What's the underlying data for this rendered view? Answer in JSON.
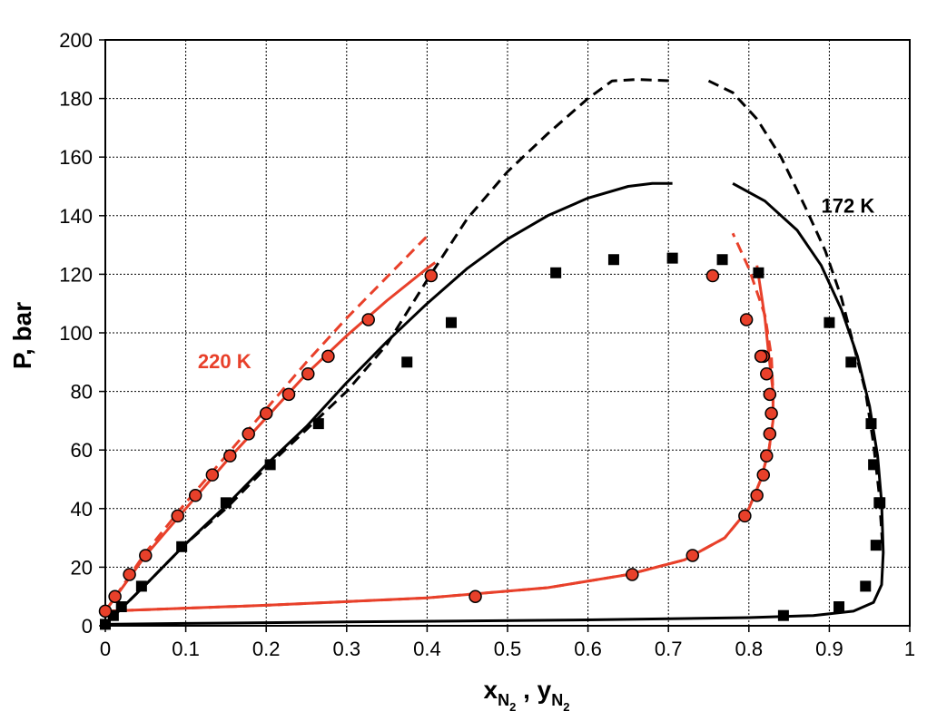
{
  "chart_data": {
    "type": "scatter",
    "title": "",
    "ylabel": "P, bar",
    "xlabel": {
      "x_main": "x",
      "x_sub": "N",
      "x_subsub": "2",
      "sep": " , ",
      "y_main": "y",
      "y_sub": "N",
      "y_subsub": "2"
    },
    "xlim": [
      0,
      1
    ],
    "ylim": [
      0,
      200
    ],
    "xticks": [
      0,
      0.1,
      0.2,
      0.3,
      0.4,
      0.5,
      0.6,
      0.7,
      0.8,
      0.9,
      1
    ],
    "xtick_labels": [
      "0",
      "0.1",
      "0.2",
      "0.3",
      "0.4",
      "0.5",
      "0.6",
      "0.7",
      "0.8",
      "0.9",
      "1"
    ],
    "yticks": [
      0,
      20,
      40,
      60,
      80,
      100,
      120,
      140,
      160,
      180,
      200
    ],
    "ytick_labels": [
      "0",
      "20",
      "40",
      "60",
      "80",
      "100",
      "120",
      "140",
      "160",
      "180",
      "200"
    ],
    "grid": true,
    "colors": {
      "k172": "#000000",
      "k220": "#e8402a"
    },
    "annotations": [
      {
        "text": "172 K",
        "x": 0.89,
        "y": 141,
        "color": "#000000"
      },
      {
        "text": "220 K",
        "x": 0.115,
        "y": 88,
        "color": "#e8402a"
      }
    ],
    "series": [
      {
        "temperature": "172 K",
        "kind": "points",
        "marker": "square",
        "color": "#000000",
        "x": [
          0.0,
          0.01,
          0.02,
          0.045,
          0.095,
          0.15,
          0.205,
          0.265,
          0.375,
          0.43,
          0.56,
          0.632,
          0.705,
          0.767,
          0.812,
          0.843,
          0.912,
          0.945,
          0.952,
          0.955,
          0.958,
          0.962,
          0.963,
          0.927,
          0.9
        ],
        "y": [
          0.5,
          3.5,
          6.5,
          13.5,
          27,
          42,
          55,
          69,
          90,
          103.5,
          120.5,
          125,
          125.5,
          125,
          120.5,
          3.5,
          6.5,
          13.5,
          69,
          55,
          27.5,
          42,
          42,
          90,
          103.5
        ]
      },
      {
        "temperature": "172 K",
        "kind": "line",
        "style": "solid",
        "color": "#000000",
        "x": [
          0.0,
          0.05,
          0.1,
          0.15,
          0.2,
          0.25,
          0.3,
          0.35,
          0.4,
          0.45,
          0.5,
          0.55,
          0.6,
          0.65,
          0.68,
          0.705
        ],
        "y": [
          0.5,
          14,
          28,
          41,
          55,
          68,
          83,
          97,
          110,
          122,
          132,
          140,
          146,
          150,
          151,
          151
        ]
      },
      {
        "temperature": "172 K",
        "kind": "line",
        "style": "solid",
        "color": "#000000",
        "x": [
          0.78,
          0.82,
          0.86,
          0.89,
          0.915,
          0.935,
          0.95,
          0.96,
          0.965,
          0.967,
          0.965,
          0.955,
          0.93,
          0.88,
          0.8,
          0.6,
          0.3,
          0.1,
          0.0
        ],
        "y": [
          151,
          145,
          135,
          123,
          108,
          92,
          75,
          58,
          42,
          25,
          14,
          8,
          5,
          3.5,
          2.8,
          2,
          1.3,
          0.8,
          0.5
        ]
      },
      {
        "temperature": "172 K",
        "kind": "line",
        "style": "dashed",
        "color": "#000000",
        "x": [
          0.0,
          0.05,
          0.1,
          0.15,
          0.2,
          0.25,
          0.3,
          0.35,
          0.4,
          0.45,
          0.5,
          0.55,
          0.6,
          0.63,
          0.66,
          0.705
        ],
        "y": [
          0.5,
          14,
          28,
          40,
          54,
          67,
          80,
          96,
          118,
          139,
          155,
          168,
          180,
          186,
          186.5,
          186
        ]
      },
      {
        "temperature": "172 K",
        "kind": "line",
        "style": "dashed",
        "color": "#000000",
        "x": [
          0.75,
          0.78,
          0.81,
          0.84,
          0.87,
          0.895,
          0.915,
          0.93,
          0.945,
          0.955,
          0.962,
          0.966
        ],
        "y": [
          186,
          182,
          173,
          160,
          143,
          128,
          112,
          96,
          80,
          62,
          45,
          28
        ]
      },
      {
        "temperature": "220 K",
        "kind": "points",
        "marker": "circle",
        "color": "#e8402a",
        "x": [
          0.0,
          0.012,
          0.03,
          0.05,
          0.09,
          0.112,
          0.133,
          0.155,
          0.178,
          0.2,
          0.228,
          0.252,
          0.277,
          0.327,
          0.405,
          0.46,
          0.655,
          0.73,
          0.795,
          0.81,
          0.818,
          0.822,
          0.826,
          0.828,
          0.826,
          0.822,
          0.818,
          0.815,
          0.797,
          0.755
        ],
        "y": [
          5,
          10,
          17.5,
          24,
          37.5,
          44.5,
          51.5,
          58,
          65.5,
          72.5,
          79,
          86,
          92,
          104.5,
          119.5,
          10,
          17.5,
          24,
          37.5,
          44.5,
          51.5,
          58,
          65.5,
          72.5,
          79,
          86,
          92,
          92,
          104.5,
          119.5
        ]
      },
      {
        "temperature": "220 K",
        "kind": "line",
        "style": "solid",
        "color": "#e8402a",
        "x": [
          0.0,
          0.05,
          0.1,
          0.15,
          0.2,
          0.25,
          0.3,
          0.35,
          0.4,
          0.41
        ],
        "y": [
          5,
          24,
          40,
          56,
          71,
          86,
          99,
          111,
          122,
          124
        ]
      },
      {
        "temperature": "220 K",
        "kind": "line",
        "style": "solid",
        "color": "#e8402a",
        "x": [
          0.0,
          0.2,
          0.4,
          0.55,
          0.65,
          0.72,
          0.77,
          0.8,
          0.815,
          0.825,
          0.83,
          0.83,
          0.825,
          0.82,
          0.81
        ],
        "y": [
          5,
          7,
          9.5,
          13,
          17.5,
          22.5,
          30,
          40,
          50,
          60,
          70,
          80,
          92,
          105,
          123
        ]
      },
      {
        "temperature": "220 K",
        "kind": "line",
        "style": "dashed",
        "color": "#e8402a",
        "x": [
          0.0,
          0.05,
          0.1,
          0.15,
          0.2,
          0.25,
          0.3,
          0.35,
          0.4
        ],
        "y": [
          5,
          25,
          42,
          58,
          74,
          90,
          105,
          119,
          133
        ]
      },
      {
        "temperature": "220 K",
        "kind": "line",
        "style": "dashed",
        "color": "#e8402a",
        "x": [
          0.0,
          0.2,
          0.4,
          0.55,
          0.65,
          0.72,
          0.77,
          0.8,
          0.815,
          0.825,
          0.83,
          0.83,
          0.828,
          0.82,
          0.8,
          0.78
        ],
        "y": [
          5,
          7,
          9.5,
          13,
          17.5,
          22.5,
          30,
          40,
          50,
          60,
          70,
          80,
          92,
          106,
          122,
          134
        ]
      }
    ]
  }
}
